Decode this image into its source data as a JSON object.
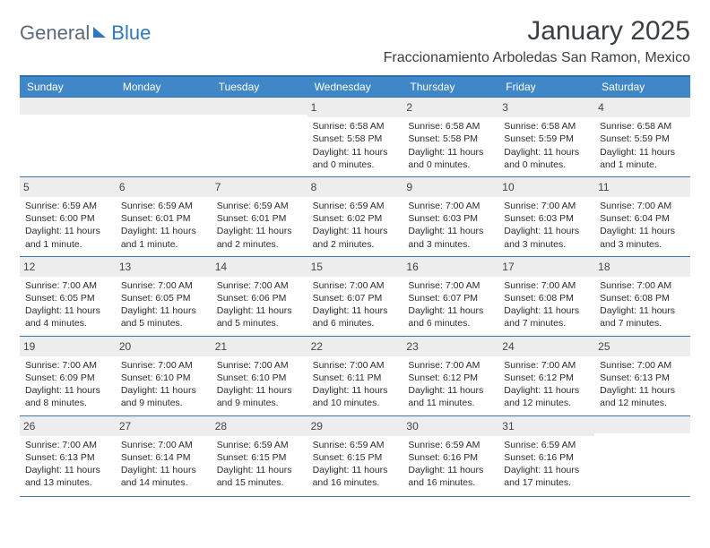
{
  "brand": {
    "part1": "General",
    "part2": "Blue"
  },
  "title": "January 2025",
  "location": "Fraccionamiento Arboledas San Ramon, Mexico",
  "weekdays": [
    "Sunday",
    "Monday",
    "Tuesday",
    "Wednesday",
    "Thursday",
    "Friday",
    "Saturday"
  ],
  "colors": {
    "headerBg": "#3f87c7",
    "headerText": "#ffffff",
    "rowBorder": "#3f74a8",
    "dayNumBg": "#ededed",
    "text": "#2f2f2f",
    "titleText": "#3a3f44",
    "brandGray": "#5a6a78",
    "brandBlue": "#2f79b9",
    "pageBg": "#ffffff"
  },
  "typography": {
    "titleFontSize": 30,
    "locationFontSize": 16,
    "weekdayFontSize": 12,
    "dayNumFontSize": 12,
    "bodyFontSize": 10.5,
    "fontFamily": "Arial"
  },
  "layout": {
    "cols": 7,
    "rows": 5,
    "widthPx": 792,
    "heightPx": 612
  },
  "weeks": [
    [
      {
        "n": "",
        "sunrise": "",
        "sunset": "",
        "daylight": ""
      },
      {
        "n": "",
        "sunrise": "",
        "sunset": "",
        "daylight": ""
      },
      {
        "n": "",
        "sunrise": "",
        "sunset": "",
        "daylight": ""
      },
      {
        "n": "1",
        "sunrise": "Sunrise: 6:58 AM",
        "sunset": "Sunset: 5:58 PM",
        "daylight": "Daylight: 11 hours and 0 minutes."
      },
      {
        "n": "2",
        "sunrise": "Sunrise: 6:58 AM",
        "sunset": "Sunset: 5:58 PM",
        "daylight": "Daylight: 11 hours and 0 minutes."
      },
      {
        "n": "3",
        "sunrise": "Sunrise: 6:58 AM",
        "sunset": "Sunset: 5:59 PM",
        "daylight": "Daylight: 11 hours and 0 minutes."
      },
      {
        "n": "4",
        "sunrise": "Sunrise: 6:58 AM",
        "sunset": "Sunset: 5:59 PM",
        "daylight": "Daylight: 11 hours and 1 minute."
      }
    ],
    [
      {
        "n": "5",
        "sunrise": "Sunrise: 6:59 AM",
        "sunset": "Sunset: 6:00 PM",
        "daylight": "Daylight: 11 hours and 1 minute."
      },
      {
        "n": "6",
        "sunrise": "Sunrise: 6:59 AM",
        "sunset": "Sunset: 6:01 PM",
        "daylight": "Daylight: 11 hours and 1 minute."
      },
      {
        "n": "7",
        "sunrise": "Sunrise: 6:59 AM",
        "sunset": "Sunset: 6:01 PM",
        "daylight": "Daylight: 11 hours and 2 minutes."
      },
      {
        "n": "8",
        "sunrise": "Sunrise: 6:59 AM",
        "sunset": "Sunset: 6:02 PM",
        "daylight": "Daylight: 11 hours and 2 minutes."
      },
      {
        "n": "9",
        "sunrise": "Sunrise: 7:00 AM",
        "sunset": "Sunset: 6:03 PM",
        "daylight": "Daylight: 11 hours and 3 minutes."
      },
      {
        "n": "10",
        "sunrise": "Sunrise: 7:00 AM",
        "sunset": "Sunset: 6:03 PM",
        "daylight": "Daylight: 11 hours and 3 minutes."
      },
      {
        "n": "11",
        "sunrise": "Sunrise: 7:00 AM",
        "sunset": "Sunset: 6:04 PM",
        "daylight": "Daylight: 11 hours and 3 minutes."
      }
    ],
    [
      {
        "n": "12",
        "sunrise": "Sunrise: 7:00 AM",
        "sunset": "Sunset: 6:05 PM",
        "daylight": "Daylight: 11 hours and 4 minutes."
      },
      {
        "n": "13",
        "sunrise": "Sunrise: 7:00 AM",
        "sunset": "Sunset: 6:05 PM",
        "daylight": "Daylight: 11 hours and 5 minutes."
      },
      {
        "n": "14",
        "sunrise": "Sunrise: 7:00 AM",
        "sunset": "Sunset: 6:06 PM",
        "daylight": "Daylight: 11 hours and 5 minutes."
      },
      {
        "n": "15",
        "sunrise": "Sunrise: 7:00 AM",
        "sunset": "Sunset: 6:07 PM",
        "daylight": "Daylight: 11 hours and 6 minutes."
      },
      {
        "n": "16",
        "sunrise": "Sunrise: 7:00 AM",
        "sunset": "Sunset: 6:07 PM",
        "daylight": "Daylight: 11 hours and 6 minutes."
      },
      {
        "n": "17",
        "sunrise": "Sunrise: 7:00 AM",
        "sunset": "Sunset: 6:08 PM",
        "daylight": "Daylight: 11 hours and 7 minutes."
      },
      {
        "n": "18",
        "sunrise": "Sunrise: 7:00 AM",
        "sunset": "Sunset: 6:08 PM",
        "daylight": "Daylight: 11 hours and 7 minutes."
      }
    ],
    [
      {
        "n": "19",
        "sunrise": "Sunrise: 7:00 AM",
        "sunset": "Sunset: 6:09 PM",
        "daylight": "Daylight: 11 hours and 8 minutes."
      },
      {
        "n": "20",
        "sunrise": "Sunrise: 7:00 AM",
        "sunset": "Sunset: 6:10 PM",
        "daylight": "Daylight: 11 hours and 9 minutes."
      },
      {
        "n": "21",
        "sunrise": "Sunrise: 7:00 AM",
        "sunset": "Sunset: 6:10 PM",
        "daylight": "Daylight: 11 hours and 9 minutes."
      },
      {
        "n": "22",
        "sunrise": "Sunrise: 7:00 AM",
        "sunset": "Sunset: 6:11 PM",
        "daylight": "Daylight: 11 hours and 10 minutes."
      },
      {
        "n": "23",
        "sunrise": "Sunrise: 7:00 AM",
        "sunset": "Sunset: 6:12 PM",
        "daylight": "Daylight: 11 hours and 11 minutes."
      },
      {
        "n": "24",
        "sunrise": "Sunrise: 7:00 AM",
        "sunset": "Sunset: 6:12 PM",
        "daylight": "Daylight: 11 hours and 12 minutes."
      },
      {
        "n": "25",
        "sunrise": "Sunrise: 7:00 AM",
        "sunset": "Sunset: 6:13 PM",
        "daylight": "Daylight: 11 hours and 12 minutes."
      }
    ],
    [
      {
        "n": "26",
        "sunrise": "Sunrise: 7:00 AM",
        "sunset": "Sunset: 6:13 PM",
        "daylight": "Daylight: 11 hours and 13 minutes."
      },
      {
        "n": "27",
        "sunrise": "Sunrise: 7:00 AM",
        "sunset": "Sunset: 6:14 PM",
        "daylight": "Daylight: 11 hours and 14 minutes."
      },
      {
        "n": "28",
        "sunrise": "Sunrise: 6:59 AM",
        "sunset": "Sunset: 6:15 PM",
        "daylight": "Daylight: 11 hours and 15 minutes."
      },
      {
        "n": "29",
        "sunrise": "Sunrise: 6:59 AM",
        "sunset": "Sunset: 6:15 PM",
        "daylight": "Daylight: 11 hours and 16 minutes."
      },
      {
        "n": "30",
        "sunrise": "Sunrise: 6:59 AM",
        "sunset": "Sunset: 6:16 PM",
        "daylight": "Daylight: 11 hours and 16 minutes."
      },
      {
        "n": "31",
        "sunrise": "Sunrise: 6:59 AM",
        "sunset": "Sunset: 6:16 PM",
        "daylight": "Daylight: 11 hours and 17 minutes."
      },
      {
        "n": "",
        "sunrise": "",
        "sunset": "",
        "daylight": ""
      }
    ]
  ]
}
